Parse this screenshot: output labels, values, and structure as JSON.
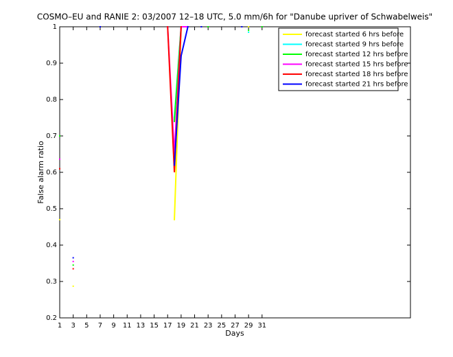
{
  "chart_data": {
    "type": "line",
    "title": "COSMO–EU and RANIE 2: 03/2007 12–18 UTC, 5.0 mm/6h for \"Danube upriver of Schwabelweis\"",
    "xlabel": "Days",
    "ylabel": "False alarm ratio",
    "x": [
      1,
      2,
      3,
      4,
      5,
      6,
      7,
      8,
      9,
      10,
      11,
      12,
      13,
      14,
      15,
      16,
      17,
      18,
      19,
      20,
      21,
      22,
      23,
      24,
      25,
      26,
      27,
      28,
      29,
      30,
      31
    ],
    "xlim": [
      1,
      53
    ],
    "xticks": [
      1,
      3,
      5,
      7,
      9,
      11,
      13,
      15,
      17,
      19,
      21,
      23,
      25,
      27,
      29,
      31
    ],
    "ylim": [
      0.2,
      1
    ],
    "yticks": [
      0.2,
      0.3,
      0.4,
      0.5,
      0.6,
      0.7,
      0.8,
      0.9,
      1
    ],
    "legend": "top-right",
    "series": [
      {
        "name": "forecast started 6 hrs before",
        "color": "#ffff00",
        "values": [
          0.47,
          null,
          0.287,
          null,
          null,
          null,
          null,
          null,
          null,
          null,
          null,
          null,
          null,
          null,
          null,
          null,
          null,
          0.47,
          1,
          null,
          null,
          null,
          null,
          null,
          null,
          null,
          null,
          null,
          1,
          null,
          null
        ]
      },
      {
        "name": "forecast started 9 hrs before",
        "color": "#00ffff",
        "values": [
          null,
          null,
          null,
          null,
          null,
          null,
          null,
          null,
          null,
          null,
          null,
          null,
          null,
          null,
          null,
          null,
          null,
          0.75,
          1,
          1,
          null,
          null,
          null,
          null,
          null,
          null,
          null,
          null,
          0.985,
          null,
          null
        ]
      },
      {
        "name": "forecast started 12 hrs before",
        "color": "#00ff00",
        "values": [
          0.7,
          null,
          0.345,
          null,
          null,
          null,
          null,
          null,
          null,
          null,
          null,
          null,
          null,
          null,
          null,
          null,
          null,
          0.74,
          1,
          1,
          null,
          null,
          1,
          null,
          null,
          null,
          null,
          null,
          0.99,
          null,
          1
        ]
      },
      {
        "name": "forecast started 15 hrs before",
        "color": "#ff00ff",
        "values": [
          0.636,
          null,
          0.355,
          null,
          null,
          null,
          null,
          null,
          null,
          null,
          null,
          null,
          null,
          null,
          null,
          null,
          1,
          0.65,
          1,
          1,
          null,
          null,
          null,
          null,
          null,
          null,
          null,
          null,
          null,
          null,
          null
        ]
      },
      {
        "name": "forecast started 18 hrs before",
        "color": "#ff0000",
        "values": [
          0.61,
          null,
          0.335,
          null,
          null,
          null,
          null,
          null,
          null,
          null,
          null,
          null,
          null,
          null,
          null,
          null,
          1,
          0.6,
          1,
          null,
          null,
          null,
          null,
          null,
          null,
          null,
          null,
          null,
          null,
          null,
          null
        ]
      },
      {
        "name": "forecast started 21 hrs before",
        "color": "#0000ff",
        "values": [
          null,
          null,
          0.365,
          null,
          null,
          null,
          1,
          null,
          null,
          null,
          null,
          null,
          null,
          null,
          null,
          null,
          null,
          0.62,
          0.92,
          1,
          null,
          1,
          null,
          null,
          null,
          null,
          null,
          1,
          null,
          null,
          null
        ]
      }
    ]
  }
}
